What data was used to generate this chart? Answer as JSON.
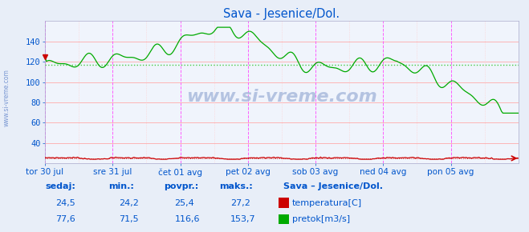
{
  "title": "Sava - Jesenice/Dol.",
  "bg_color": "#e8eef8",
  "plot_bg_color": "#f0f4fc",
  "grid_color_h": "#ffaaaa",
  "grid_color_v": "#ffcccc",
  "vline_magenta": "#ff44ff",
  "vline_dark": "#888888",
  "text_color": "#0055cc",
  "title_color": "#0055cc",
  "temp_color": "#cc0000",
  "flow_color": "#00aa00",
  "avg_line_color": "#44cc44",
  "sidebar_color": "#6688cc",
  "watermark_color": "#aabbdd",
  "ylim": [
    20,
    160
  ],
  "yticks": [
    40,
    60,
    80,
    100,
    120,
    140
  ],
  "n_points": 336,
  "temp_min": 24.2,
  "temp_max": 27.2,
  "temp_avg": 25.4,
  "temp_current": 24.5,
  "flow_min": 71.5,
  "flow_max": 153.7,
  "flow_avg": 116.6,
  "flow_current": 77.6,
  "xtick_labels": [
    "tor 30 jul",
    "sre 31 jul",
    "čet 01 avg",
    "pet 02 avg",
    "sob 03 avg",
    "ned 04 avg",
    "pon 05 avg"
  ],
  "watermark": "www.si-vreme.com",
  "legend_title": "Sava – Jesenice/Dol.",
  "label_temp": "temperatura[C]",
  "label_flow": "pretok[m3/s]",
  "sidebar_text": "www.si-vreme.com"
}
